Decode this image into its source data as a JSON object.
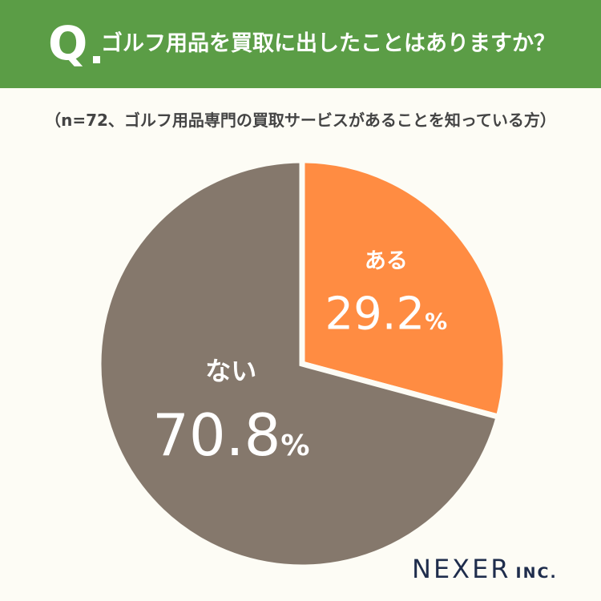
{
  "header": {
    "q_mark": "Q",
    "question": "ゴルフ用品を買取に出したことはありますか？",
    "bg_color": "#5b9d46"
  },
  "note": "（n=72、ゴルフ用品専門の買取サービスがあることを知っている方）",
  "chart_data": {
    "type": "pie",
    "title": "",
    "slices": [
      {
        "label": "ある",
        "value": 29.2,
        "display": "29.2",
        "color": "#ff8c42"
      },
      {
        "label": "ない",
        "value": 70.8,
        "display": "70.8",
        "color": "#85786c"
      }
    ],
    "unit": "%",
    "start_angle_deg": 0,
    "direction": "clockwise",
    "separator_color": "#fdfcf5"
  },
  "logo": {
    "main": "NEXER",
    "suffix": "INC."
  }
}
